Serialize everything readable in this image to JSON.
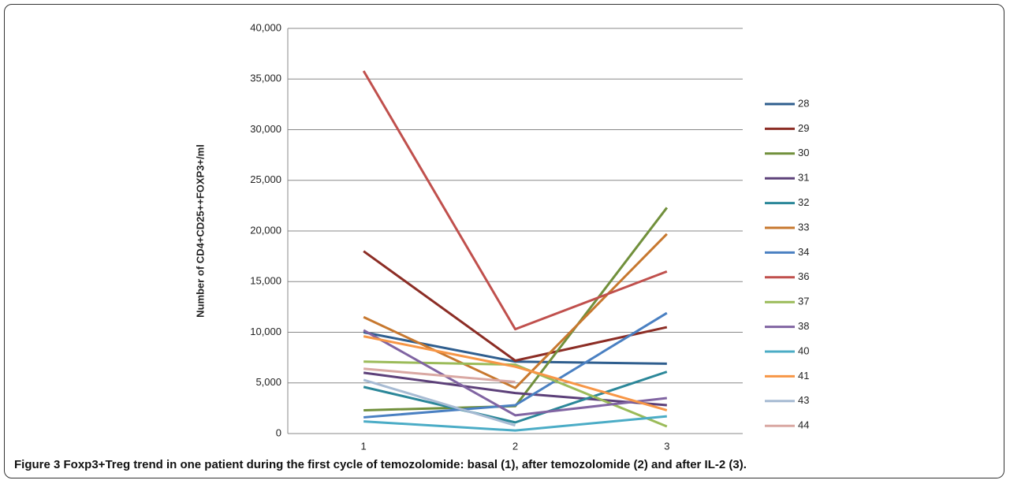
{
  "chart_data": {
    "type": "line",
    "y_label": "Number of CD4+CD25++FOXP3+/ml",
    "caption": "Figure 3 Foxp3+Treg trend in one patient during the first cycle of temozolomide: basal (1), after temozolomide (2) and after IL-2 (3).",
    "categories": [
      "1",
      "2",
      "3"
    ],
    "ylim": [
      0,
      40000
    ],
    "yticks": [
      0,
      {
        "value": 5000,
        "label": "5,000"
      },
      {
        "value": 10000,
        "label": "10,000"
      },
      {
        "value": 15000,
        "label": "15,000"
      },
      {
        "value": 20000,
        "label": "20,000"
      },
      {
        "value": 25000,
        "label": "25,000"
      },
      {
        "value": 30000,
        "label": "30,000"
      },
      {
        "value": 35000,
        "label": "35,000"
      },
      {
        "value": 40000,
        "label": "40,000"
      }
    ],
    "grid": true,
    "legend": "right",
    "series": [
      {
        "name": "28",
        "color": "#2f5e8e",
        "values": [
          10000,
          7100,
          6900
        ]
      },
      {
        "name": "29",
        "color": "#8c2d25",
        "values": [
          18000,
          7200,
          10500
        ]
      },
      {
        "name": "30",
        "color": "#71903c",
        "values": [
          2300,
          2700,
          22300
        ]
      },
      {
        "name": "31",
        "color": "#5c4079",
        "values": [
          6000,
          4000,
          2800
        ]
      },
      {
        "name": "32",
        "color": "#2b8799",
        "values": [
          4600,
          1100,
          6100
        ]
      },
      {
        "name": "33",
        "color": "#c7782f",
        "values": [
          11500,
          4500,
          19700
        ]
      },
      {
        "name": "34",
        "color": "#4a80c2",
        "values": [
          1600,
          2800,
          11900
        ]
      },
      {
        "name": "36",
        "color": "#c0504d",
        "values": [
          35800,
          10300,
          16000
        ]
      },
      {
        "name": "37",
        "color": "#9bbb59",
        "values": [
          7100,
          6800,
          700
        ]
      },
      {
        "name": "38",
        "color": "#8064a2",
        "values": [
          10200,
          1800,
          3500
        ]
      },
      {
        "name": "40",
        "color": "#4bacc6",
        "values": [
          1200,
          300,
          1700
        ]
      },
      {
        "name": "41",
        "color": "#f79646",
        "values": [
          9600,
          6600,
          2300
        ]
      },
      {
        "name": "43",
        "color": "#a7bbd3",
        "values": [
          5300,
          800,
          null
        ]
      },
      {
        "name": "44",
        "color": "#d9a8a3",
        "values": [
          6400,
          5100,
          null
        ]
      }
    ]
  }
}
